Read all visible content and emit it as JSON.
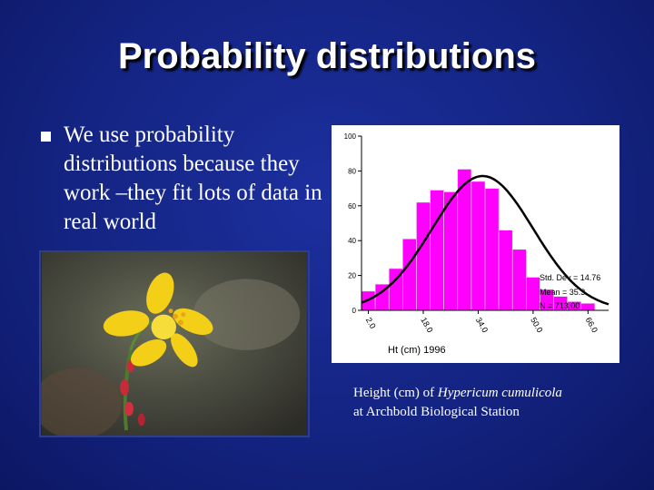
{
  "slide": {
    "title": "Probability distributions",
    "bullet": "We use probability distributions because they work –they fit lots of data in real world"
  },
  "caption": {
    "prefix": "Height (cm) of ",
    "species": "Hypericum cumulicola",
    "line2": "at Archbold Biological Station"
  },
  "chart_data": {
    "type": "bar",
    "xlabel": "Ht (cm) 1996",
    "ylabel": "",
    "ylim": [
      0,
      100
    ],
    "yticks": [
      "100",
      "80",
      "60",
      "40",
      "20",
      "0"
    ],
    "xticks": [
      "2.0",
      "18.0",
      "34.0",
      "50.0",
      "66.0"
    ],
    "bin_width": 4,
    "x": [
      2,
      6,
      10,
      14,
      18,
      22,
      26,
      30,
      34,
      38,
      42,
      46,
      50,
      54,
      58,
      62,
      66
    ],
    "values": [
      11,
      15,
      24,
      41,
      62,
      69,
      68,
      81,
      74,
      70,
      46,
      35,
      19,
      12,
      8,
      5,
      4
    ],
    "curve": "normal fit",
    "stats": [
      "Std. Dev = 14.76",
      "Mean = 35.3",
      "N = 713.00"
    ],
    "bar_color": "#ff00ff"
  }
}
